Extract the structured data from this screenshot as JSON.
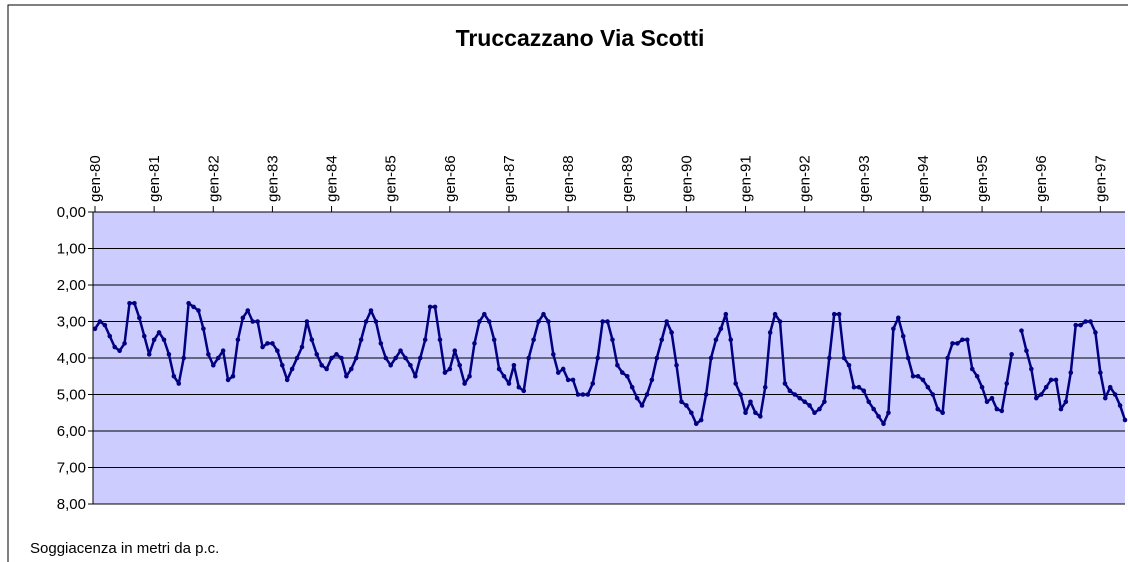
{
  "chart_data": {
    "type": "line",
    "title": "Truccazzano Via Scotti",
    "ylabel": "Soggiacenza in metri da p.c.",
    "y_inverted": true,
    "grid": true,
    "x": [
      "1980-01",
      "1980-02",
      "1980-03",
      "1980-04",
      "1980-05",
      "1980-06",
      "1980-07",
      "1980-08",
      "1980-09",
      "1980-10",
      "1980-11",
      "1980-12",
      "1981-01",
      "1981-02",
      "1981-03",
      "1981-04",
      "1981-05",
      "1981-06",
      "1981-07",
      "1981-08",
      "1981-09",
      "1981-10",
      "1981-11",
      "1981-12",
      "1982-01",
      "1982-02",
      "1982-03",
      "1982-04",
      "1982-05",
      "1982-06",
      "1982-07",
      "1982-08",
      "1982-09",
      "1982-10",
      "1982-11",
      "1982-12",
      "1983-01",
      "1983-02",
      "1983-03",
      "1983-04",
      "1983-05",
      "1983-06",
      "1983-07",
      "1983-08",
      "1983-09",
      "1983-10",
      "1983-11",
      "1983-12",
      "1984-01",
      "1984-02",
      "1984-03",
      "1984-04",
      "1984-05",
      "1984-06",
      "1984-07",
      "1984-08",
      "1984-09",
      "1984-10",
      "1984-11",
      "1984-12",
      "1985-01",
      "1985-02",
      "1985-03",
      "1985-04",
      "1985-05",
      "1985-06",
      "1985-07",
      "1985-08",
      "1985-09",
      "1985-10",
      "1985-11",
      "1985-12",
      "1986-01",
      "1986-02",
      "1986-03",
      "1986-04",
      "1986-05",
      "1986-06",
      "1986-07",
      "1986-08",
      "1986-09",
      "1986-10",
      "1986-11",
      "1986-12",
      "1987-01",
      "1987-02",
      "1987-03",
      "1987-04",
      "1987-05",
      "1987-06",
      "1987-07",
      "1987-08",
      "1987-09",
      "1987-10",
      "1987-11",
      "1987-12",
      "1988-01",
      "1988-02",
      "1988-03",
      "1988-04",
      "1988-05",
      "1988-06",
      "1988-07",
      "1988-08",
      "1988-09",
      "1988-10",
      "1988-11",
      "1988-12",
      "1989-01",
      "1989-02",
      "1989-03",
      "1989-04",
      "1989-05",
      "1989-06",
      "1989-07",
      "1989-08",
      "1989-09",
      "1989-10",
      "1989-11",
      "1989-12",
      "1990-01",
      "1990-02",
      "1990-03",
      "1990-04",
      "1990-05",
      "1990-06",
      "1990-07",
      "1990-08",
      "1990-09",
      "1990-10",
      "1990-11",
      "1990-12",
      "1991-01",
      "1991-02",
      "1991-03",
      "1991-04",
      "1991-05",
      "1991-06",
      "1991-07",
      "1991-08",
      "1991-09",
      "1991-10",
      "1991-11",
      "1991-12",
      "1992-01",
      "1992-02",
      "1992-03",
      "1992-04",
      "1992-05",
      "1992-06",
      "1992-07",
      "1992-08",
      "1992-09",
      "1992-10",
      "1992-11",
      "1992-12",
      "1993-01",
      "1993-02",
      "1993-03",
      "1993-04",
      "1993-05",
      "1993-06",
      "1993-07",
      "1993-08",
      "1993-09",
      "1993-10",
      "1993-11",
      "1993-12",
      "1994-01",
      "1994-02",
      "1994-03",
      "1994-04",
      "1994-05",
      "1994-06",
      "1994-07",
      "1994-08",
      "1994-09",
      "1994-10",
      "1994-11",
      "1994-12",
      "1995-01",
      "1995-02",
      "1995-03",
      "1995-04",
      "1995-05",
      "1995-06",
      "1995-07",
      "1995-08",
      "1995-09",
      "1995-10",
      "1995-11",
      "1995-12",
      "1996-01",
      "1996-02",
      "1996-03",
      "1996-04",
      "1996-05",
      "1996-06",
      "1996-07",
      "1996-08",
      "1996-09",
      "1996-10",
      "1996-11",
      "1996-12",
      "1997-01",
      "1997-02",
      "1997-03",
      "1997-04",
      "1997-05",
      "1997-06"
    ],
    "series": [
      {
        "name": "Soggiacenza",
        "color": "#000080",
        "values": [
          3.2,
          3.0,
          3.1,
          3.4,
          3.7,
          3.8,
          3.6,
          2.5,
          2.5,
          2.9,
          3.4,
          3.9,
          3.5,
          3.3,
          3.5,
          3.9,
          4.5,
          4.7,
          4.0,
          2.5,
          2.6,
          2.7,
          3.2,
          3.9,
          4.2,
          4.0,
          3.8,
          4.6,
          4.5,
          3.5,
          2.9,
          2.7,
          3.0,
          3.0,
          3.7,
          3.6,
          3.6,
          3.8,
          4.2,
          4.6,
          4.3,
          4.0,
          3.7,
          3.0,
          3.5,
          3.9,
          4.2,
          4.3,
          4.0,
          3.9,
          4.0,
          4.5,
          4.3,
          4.0,
          3.5,
          3.0,
          2.7,
          3.0,
          3.6,
          4.0,
          4.2,
          4.0,
          3.8,
          4.0,
          4.2,
          4.5,
          4.0,
          3.5,
          2.6,
          2.6,
          3.5,
          4.4,
          4.3,
          3.8,
          4.2,
          4.7,
          4.5,
          3.6,
          3.0,
          2.8,
          3.0,
          3.5,
          4.3,
          4.5,
          4.7,
          4.2,
          4.8,
          4.9,
          4.0,
          3.5,
          3.0,
          2.8,
          3.0,
          3.9,
          4.4,
          4.3,
          4.6,
          4.6,
          5.0,
          5.0,
          5.0,
          4.7,
          4.0,
          3.0,
          3.0,
          3.5,
          4.2,
          4.4,
          4.5,
          4.8,
          5.1,
          5.3,
          5.0,
          4.6,
          4.0,
          3.5,
          3.0,
          3.3,
          4.2,
          5.2,
          5.3,
          5.5,
          5.8,
          5.7,
          5.0,
          4.0,
          3.5,
          3.2,
          2.8,
          3.5,
          4.7,
          5.0,
          5.5,
          5.2,
          5.5,
          5.6,
          4.8,
          3.3,
          2.8,
          3.0,
          4.7,
          4.9,
          5.0,
          5.1,
          5.2,
          5.3,
          5.5,
          5.4,
          5.2,
          4.0,
          2.8,
          2.8,
          4.0,
          4.2,
          4.8,
          4.8,
          4.9,
          5.2,
          5.4,
          5.6,
          5.8,
          5.5,
          3.2,
          2.9,
          3.4,
          4.0,
          4.5,
          4.5,
          4.6,
          4.8,
          5.0,
          5.4,
          5.5,
          4.0,
          3.6,
          3.6,
          3.5,
          3.5,
          4.3,
          4.5,
          4.8,
          5.2,
          5.1,
          5.4,
          5.45,
          4.7,
          3.9,
          null,
          3.25,
          3.8,
          4.3,
          5.1,
          5.0,
          4.8,
          4.6,
          4.6,
          5.4,
          5.2,
          4.4,
          3.1,
          3.1,
          3.0,
          3.0,
          3.3,
          4.4,
          5.1,
          4.8,
          5.0,
          5.3,
          5.7
        ]
      }
    ],
    "xlim": [
      "1980-01",
      "1997-06"
    ],
    "xticks": [
      {
        "value": "1980-01",
        "label": "gen-80"
      },
      {
        "value": "1981-01",
        "label": "gen-81"
      },
      {
        "value": "1982-01",
        "label": "gen-82"
      },
      {
        "value": "1983-01",
        "label": "gen-83"
      },
      {
        "value": "1984-01",
        "label": "gen-84"
      },
      {
        "value": "1985-01",
        "label": "gen-85"
      },
      {
        "value": "1986-01",
        "label": "gen-86"
      },
      {
        "value": "1987-01",
        "label": "gen-87"
      },
      {
        "value": "1988-01",
        "label": "gen-88"
      },
      {
        "value": "1989-01",
        "label": "gen-89"
      },
      {
        "value": "1990-01",
        "label": "gen-90"
      },
      {
        "value": "1991-01",
        "label": "gen-91"
      },
      {
        "value": "1992-01",
        "label": "gen-92"
      },
      {
        "value": "1993-01",
        "label": "gen-93"
      },
      {
        "value": "1994-01",
        "label": "gen-94"
      },
      {
        "value": "1995-01",
        "label": "gen-95"
      },
      {
        "value": "1996-01",
        "label": "gen-96"
      },
      {
        "value": "1997-01",
        "label": "gen-97"
      }
    ],
    "ylim": [
      0,
      8
    ],
    "yticks": [
      {
        "value": 0,
        "label": "0,00"
      },
      {
        "value": 1,
        "label": "1,00"
      },
      {
        "value": 2,
        "label": "2,00"
      },
      {
        "value": 3,
        "label": "3,00"
      },
      {
        "value": 4,
        "label": "4,00"
      },
      {
        "value": 5,
        "label": "5,00"
      },
      {
        "value": 6,
        "label": "6,00"
      },
      {
        "value": 7,
        "label": "7,00"
      },
      {
        "value": 8,
        "label": "8,00"
      }
    ]
  }
}
